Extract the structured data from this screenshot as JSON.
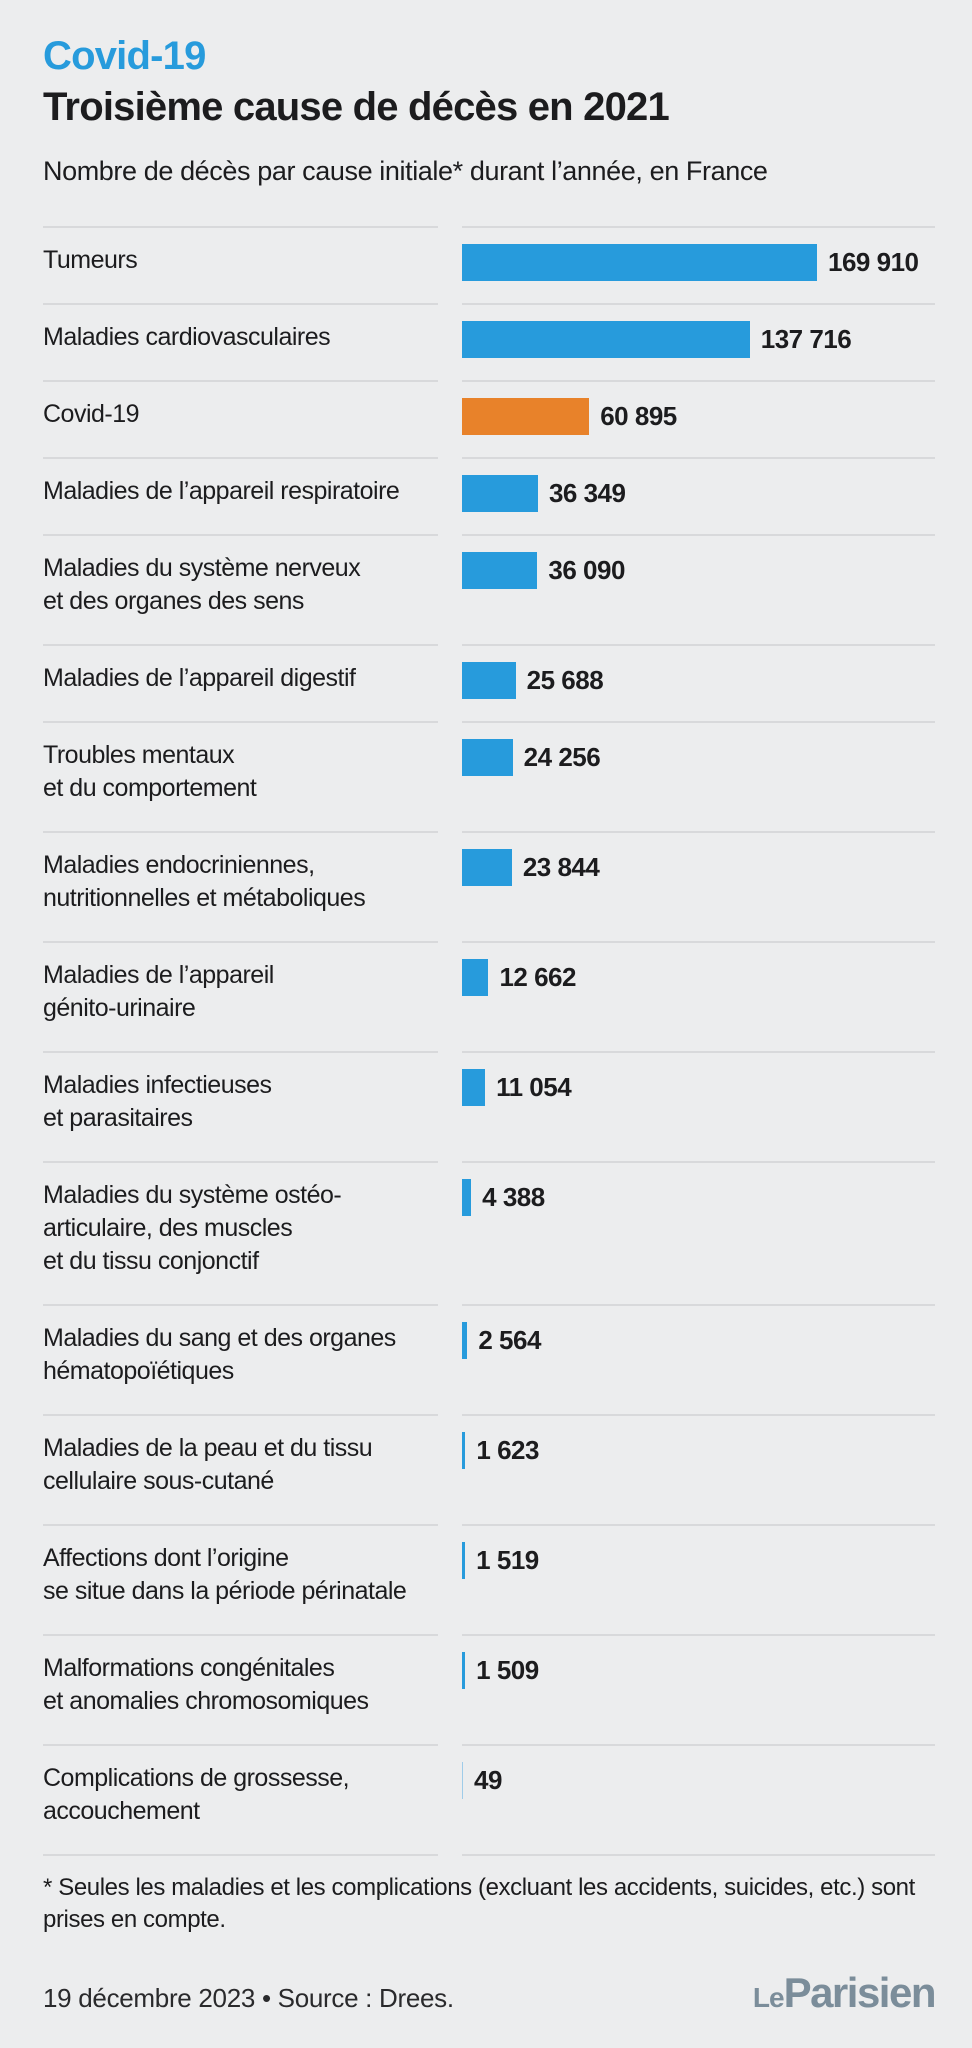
{
  "header": {
    "kicker": "Covid-19",
    "title": "Troisième cause de décès en 2021",
    "subtitle": "Nombre de décès par cause initiale* durant l’année, en France"
  },
  "colors": {
    "accent_blue": "#279bdc",
    "accent_orange": "#e8822a",
    "background": "#ecedee",
    "text": "#1c1c1e",
    "divider": "#d8d9db",
    "logo_gray": "#7b8d9a"
  },
  "chart_data": {
    "type": "bar",
    "orientation": "horizontal",
    "title": "Troisième cause de décès en 2021",
    "subtitle": "Nombre de décès par cause initiale* durant l’année, en France",
    "value_max": 169910,
    "highlight_category": "Covid-19",
    "rows": [
      {
        "label_lines": [
          "Tumeurs"
        ],
        "value": 169910,
        "value_label": "169 910",
        "highlight": false
      },
      {
        "label_lines": [
          "Maladies cardiovasculaires"
        ],
        "value": 137716,
        "value_label": "137 716",
        "highlight": false
      },
      {
        "label_lines": [
          "Covid-19"
        ],
        "value": 60895,
        "value_label": "60 895",
        "highlight": true
      },
      {
        "label_lines": [
          "Maladies de l’appareil respiratoire"
        ],
        "value": 36349,
        "value_label": "36 349",
        "highlight": false
      },
      {
        "label_lines": [
          "Maladies du système nerveux",
          "et des organes des sens"
        ],
        "value": 36090,
        "value_label": "36 090",
        "highlight": false
      },
      {
        "label_lines": [
          "Maladies de l’appareil digestif"
        ],
        "value": 25688,
        "value_label": "25 688",
        "highlight": false
      },
      {
        "label_lines": [
          "Troubles mentaux",
          "et du comportement"
        ],
        "value": 24256,
        "value_label": "24 256",
        "highlight": false
      },
      {
        "label_lines": [
          "Maladies endocriniennes,",
          "nutritionnelles et métaboliques"
        ],
        "value": 23844,
        "value_label": "23 844",
        "highlight": false
      },
      {
        "label_lines": [
          "Maladies de l’appareil",
          "génito-urinaire"
        ],
        "value": 12662,
        "value_label": "12 662",
        "highlight": false
      },
      {
        "label_lines": [
          "Maladies infectieuses",
          "et parasitaires"
        ],
        "value": 11054,
        "value_label": "11 054",
        "highlight": false
      },
      {
        "label_lines": [
          "Maladies du système ostéo-",
          "articulaire, des muscles",
          "et du tissu conjonctif"
        ],
        "value": 4388,
        "value_label": "4 388",
        "highlight": false
      },
      {
        "label_lines": [
          "Maladies du sang et des organes",
          "hématopoïétiques"
        ],
        "value": 2564,
        "value_label": "2 564",
        "highlight": false
      },
      {
        "label_lines": [
          "Maladies de la peau et du tissu",
          "cellulaire sous-cutané"
        ],
        "value": 1623,
        "value_label": "1 623",
        "highlight": false
      },
      {
        "label_lines": [
          "Affections dont l’origine",
          "se situe dans la période périnatale"
        ],
        "value": 1519,
        "value_label": "1 519",
        "highlight": false
      },
      {
        "label_lines": [
          "Malformations congénitales",
          "et anomalies chromosomiques"
        ],
        "value": 1509,
        "value_label": "1 509",
        "highlight": false
      },
      {
        "label_lines": [
          "Complications de grossesse,",
          "accouchement"
        ],
        "value": 49,
        "value_label": "49",
        "highlight": false
      }
    ]
  },
  "footnote": {
    "line1": "* Seules les maladies et les complications (excluant les accidents, suicides, etc.) sont",
    "line2": "prises en compte."
  },
  "footer": {
    "dateline": "19 décembre 2023 • Source : Drees.",
    "logo_le": "Le",
    "logo_parisien": "Parisien"
  }
}
